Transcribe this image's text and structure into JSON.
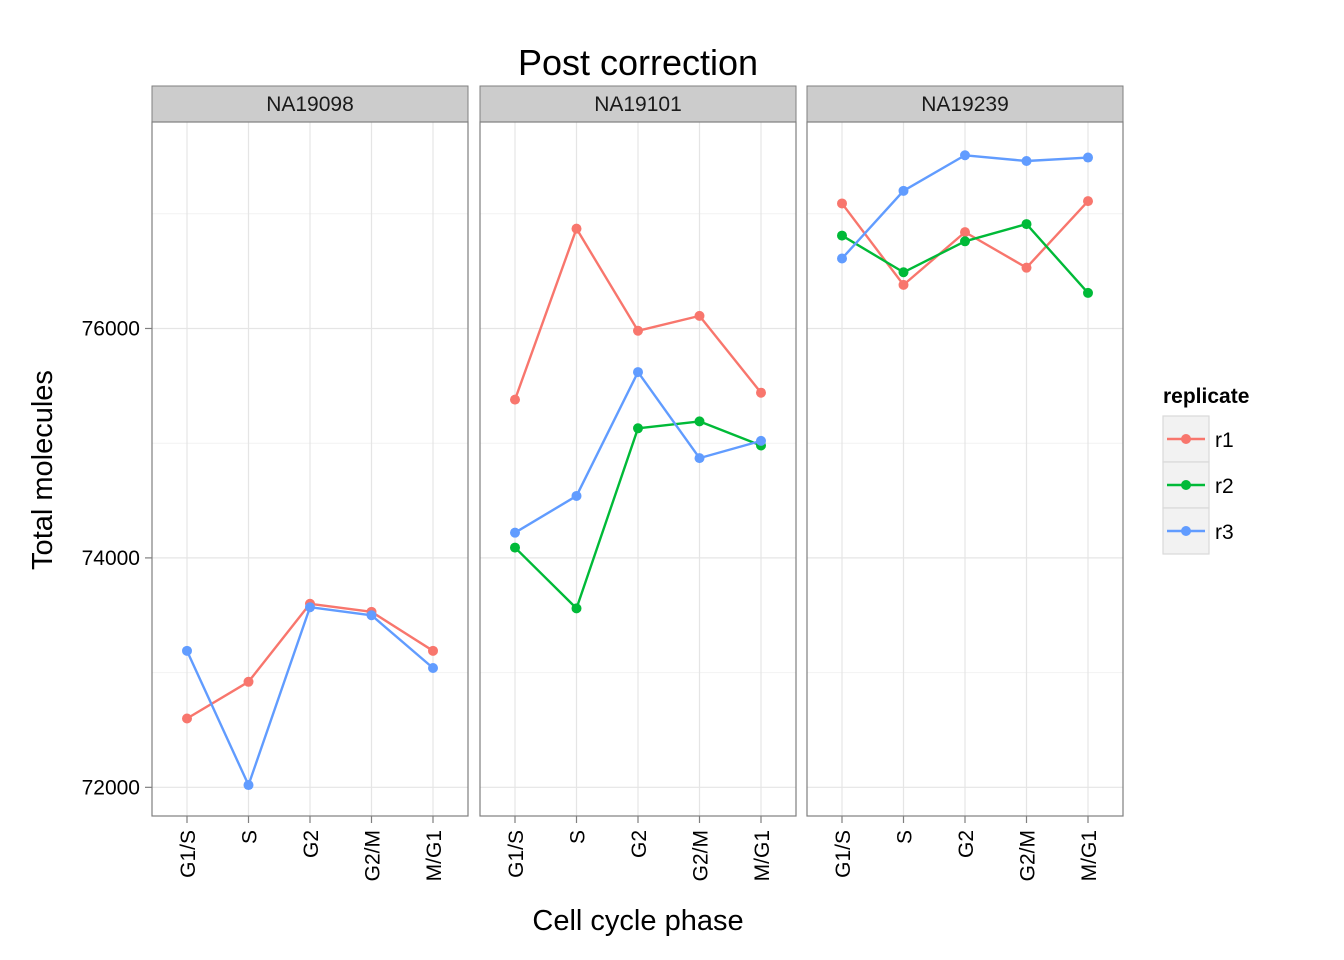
{
  "chart_data": {
    "type": "line",
    "title": "Post correction",
    "xlabel": "Cell cycle phase",
    "ylabel": "Total molecules",
    "categories": [
      "G1/S",
      "S",
      "G2",
      "G2/M",
      "M/G1"
    ],
    "ylim": [
      71750,
      77800
    ],
    "yticks": [
      72000,
      74000,
      76000
    ],
    "grid": true,
    "legend": {
      "title": "replicate",
      "placement": "right"
    },
    "colors": {
      "r1": "#F8766D",
      "r2": "#00BA38",
      "r3": "#619CFF"
    },
    "panels": [
      {
        "name": "NA19098",
        "series": [
          {
            "name": "r1",
            "values": [
              72600,
              72920,
              73600,
              73530,
              73190
            ]
          },
          {
            "name": "r3",
            "values": [
              73190,
              72020,
              73570,
              73500,
              73040
            ]
          }
        ]
      },
      {
        "name": "NA19101",
        "series": [
          {
            "name": "r1",
            "values": [
              75380,
              76870,
              75980,
              76110,
              75440
            ]
          },
          {
            "name": "r2",
            "values": [
              74090,
              73560,
              75130,
              75190,
              74980
            ]
          },
          {
            "name": "r3",
            "values": [
              74220,
              74540,
              75620,
              74870,
              75020
            ]
          }
        ]
      },
      {
        "name": "NA19239",
        "series": [
          {
            "name": "r1",
            "values": [
              77090,
              76380,
              76840,
              76530,
              77110
            ]
          },
          {
            "name": "r2",
            "values": [
              76810,
              76490,
              76760,
              76910,
              76310
            ]
          },
          {
            "name": "r3",
            "values": [
              76610,
              77200,
              77510,
              77460,
              77490
            ]
          }
        ]
      }
    ]
  }
}
